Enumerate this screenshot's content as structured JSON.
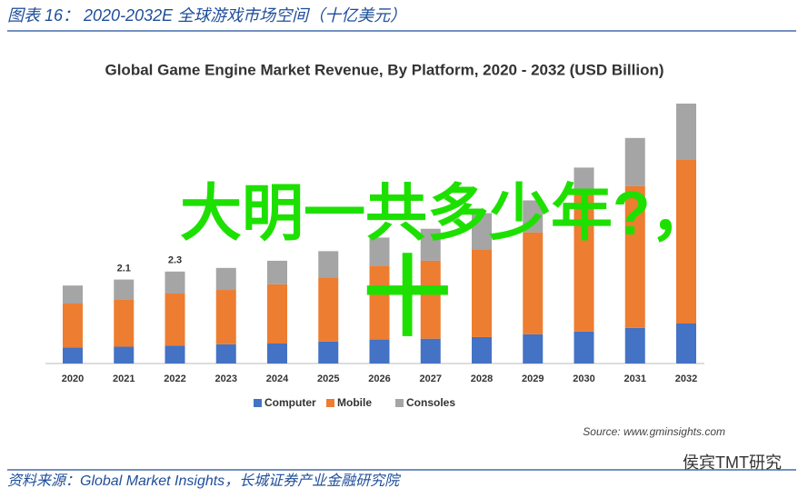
{
  "header": {
    "title": "图表 16： 2020-2032E 全球游戏市场空间（十亿美元）"
  },
  "chart_data": {
    "type": "bar",
    "stacked": true,
    "title": "Global Game Engine Market Revenue, By Platform, 2020 - 2032 (USD Billion)",
    "categories": [
      "2020",
      "2021",
      "2022",
      "2023",
      "2024",
      "2025",
      "2026",
      "2027",
      "2028",
      "2029",
      "2030",
      "2031",
      "2032"
    ],
    "series": [
      {
        "name": "Computer",
        "color": "#4472c4",
        "values": [
          0.4,
          0.42,
          0.45,
          0.48,
          0.5,
          0.55,
          0.6,
          0.62,
          0.66,
          0.73,
          0.8,
          0.89,
          1.0
        ]
      },
      {
        "name": "Mobile",
        "color": "#ed7d31",
        "values": [
          1.1,
          1.18,
          1.3,
          1.36,
          1.48,
          1.6,
          1.85,
          1.95,
          2.2,
          2.55,
          3.5,
          3.55,
          4.1
        ]
      },
      {
        "name": "Consoles",
        "color": "#a5a5a5",
        "values": [
          0.45,
          0.5,
          0.55,
          0.55,
          0.59,
          0.66,
          0.7,
          0.8,
          0.9,
          0.8,
          0.6,
          1.2,
          1.4
        ]
      }
    ],
    "total_labels": [
      null,
      "2.1",
      "2.3",
      null,
      null,
      null,
      null,
      null,
      null,
      null,
      null,
      null,
      null
    ],
    "ylim": [
      0,
      7
    ],
    "legend": "bottom",
    "source": "Source: www.gminsights.com"
  },
  "footer": {
    "source": "资料来源：Global Market Insights，长城证券产业金融研究院",
    "watermark": "侯宾TMT研究"
  },
  "overlay": {
    "question": "大明一共多少年?，",
    "answer": "十"
  }
}
